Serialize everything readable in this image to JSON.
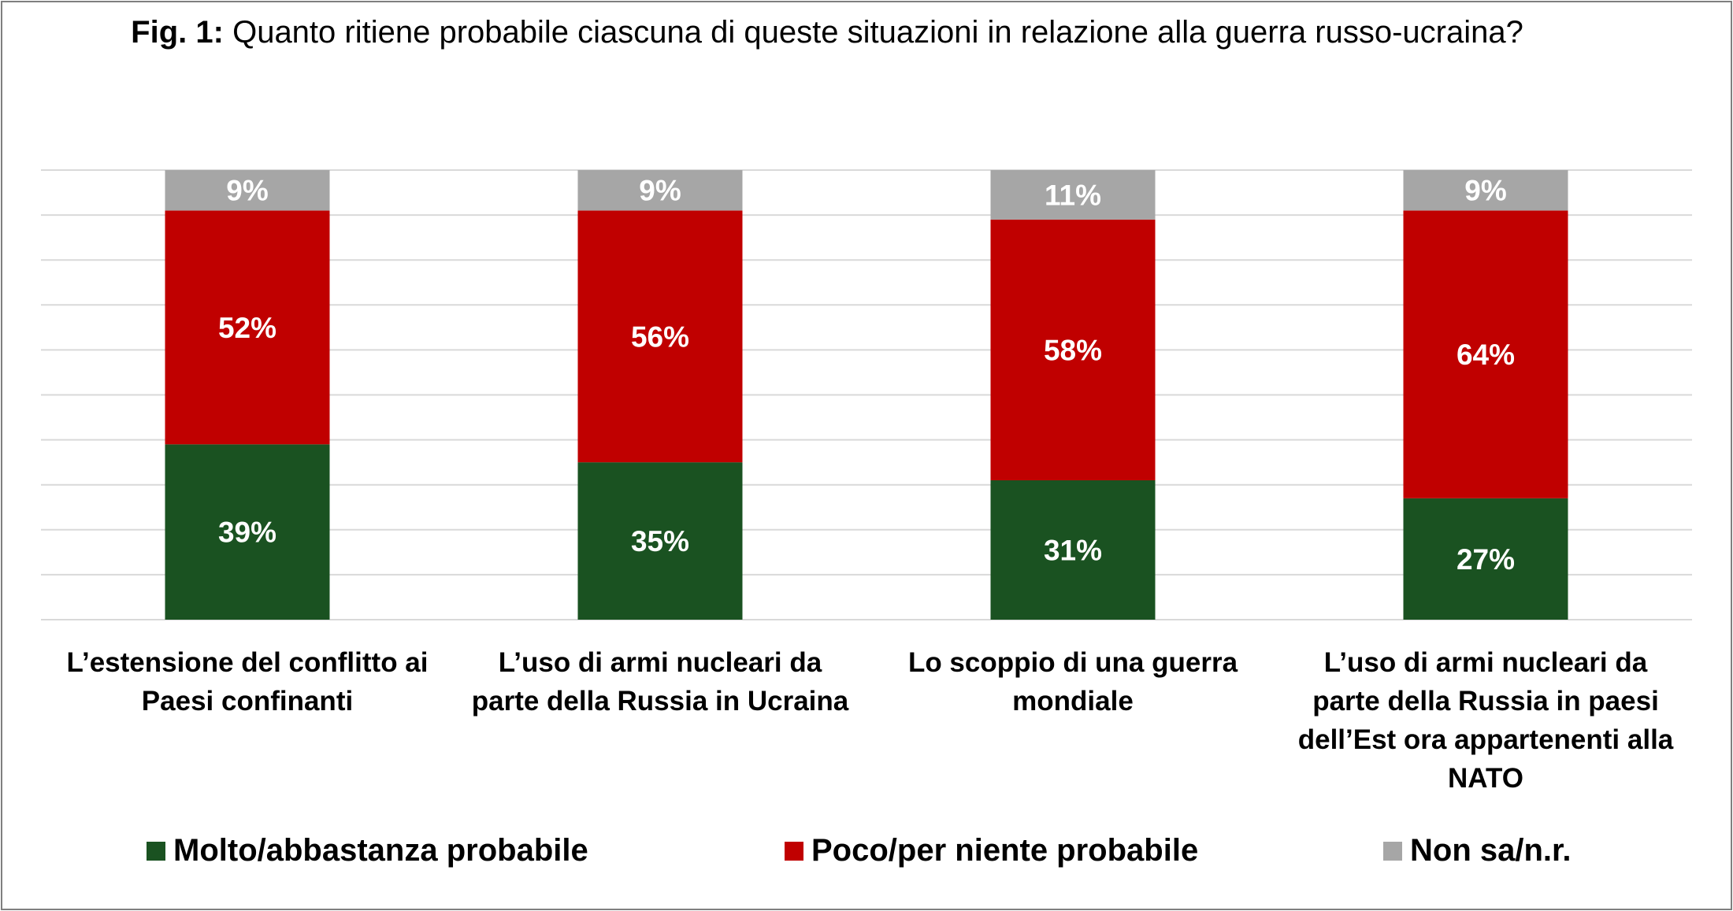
{
  "chart_data": {
    "type": "bar",
    "stacked": true,
    "title_prefix": "Fig. 1:",
    "title": "Quanto ritiene probabile ciascuna di queste situazioni in relazione alla guerra russo-ucraina?",
    "categories": [
      "L’estensione del conflitto ai Paesi confinanti",
      "L’uso di armi nucleari da parte della Russia in Ucraina",
      "Lo scoppio di una guerra mondiale",
      "L’uso di armi nucleari da parte della Russia in paesi dell’Est ora appartenenti alla NATO"
    ],
    "series": [
      {
        "name": "Molto/abbastanza probabile",
        "color": "#1a5221",
        "values": [
          39,
          35,
          31,
          27
        ]
      },
      {
        "name": "Poco/per niente probabile",
        "color": "#c00000",
        "values": [
          52,
          56,
          58,
          64
        ]
      },
      {
        "name": "Non sa/n.r.",
        "color": "#a6a6a6",
        "values": [
          9,
          9,
          11,
          9
        ]
      }
    ],
    "value_suffix": "%",
    "ylim": [
      0,
      100
    ],
    "grid": true,
    "legend_position": "bottom"
  }
}
